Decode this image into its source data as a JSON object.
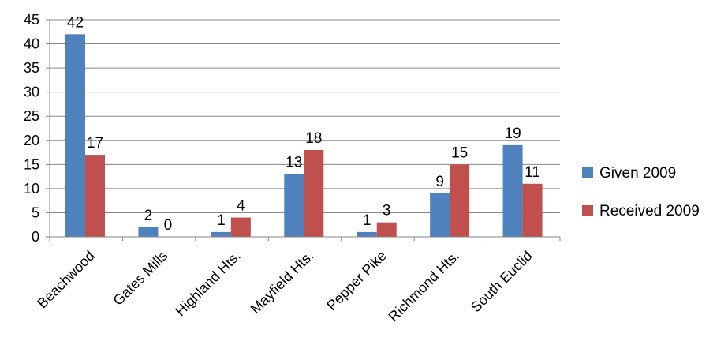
{
  "chart_data": {
    "type": "bar",
    "categories": [
      "Beachwood",
      "Gates Mills",
      "Highland Hts.",
      "Mayfield Hts.",
      "Pepper Pike",
      "Richmond Hts.",
      "South Euclid"
    ],
    "series": [
      {
        "name": "Given 2009",
        "values": [
          42,
          2,
          1,
          13,
          1,
          9,
          19
        ],
        "color": "#4f81bd"
      },
      {
        "name": "Received 2009",
        "values": [
          17,
          0,
          4,
          18,
          3,
          15,
          11
        ],
        "color": "#c0504d"
      }
    ],
    "title": "",
    "xlabel": "",
    "ylabel": "",
    "ylim": [
      0,
      45
    ],
    "yticks": [
      0,
      5,
      10,
      15,
      20,
      25,
      30,
      35,
      40,
      45
    ],
    "grid": true,
    "legend": "right"
  }
}
